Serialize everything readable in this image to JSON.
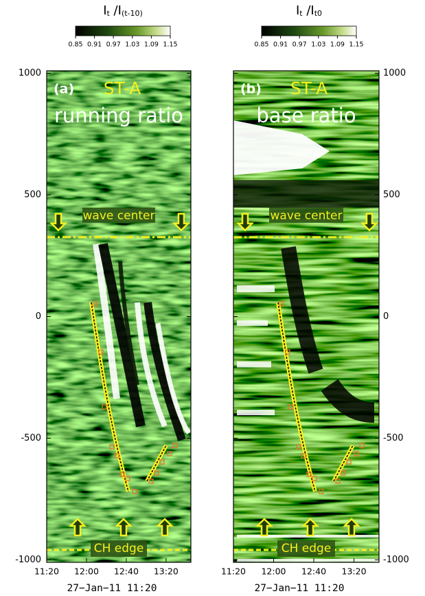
{
  "panels": [
    {
      "label": "(a)",
      "title": "ST-A",
      "subtitle": "running ratio",
      "colorbar": {
        "title_parts": [
          "I",
          "t",
          " /I",
          "(t-10)"
        ],
        "ticks": [
          0.85,
          0.91,
          0.97,
          1.03,
          1.09,
          1.15
        ]
      },
      "ylim": [
        -1010,
        1010
      ],
      "yticks": [
        1000,
        500,
        0,
        -500,
        -1000
      ],
      "xticks": [
        "11:20",
        "12:00",
        "12:40",
        "13:20"
      ],
      "xlabel": "27−Jan−11 11:20",
      "annotations": [
        "wave center",
        "CH edge"
      ]
    },
    {
      "label": "(b)",
      "title": "ST-A",
      "subtitle": "base ratio",
      "colorbar": {
        "title_parts": [
          "I",
          "t",
          " /I",
          "t0"
        ],
        "ticks": [
          0.85,
          0.91,
          0.97,
          1.03,
          1.09,
          1.15
        ]
      },
      "ylim": [
        -1010,
        1010
      ],
      "yticks": [
        1000,
        500,
        0,
        -500,
        -1000
      ],
      "xticks": [
        "11:20",
        "12:00",
        "12:40",
        "13:20"
      ],
      "xlabel": "27−Jan−11 11:20",
      "annotations": [
        "wave center",
        "CH edge"
      ]
    }
  ]
}
